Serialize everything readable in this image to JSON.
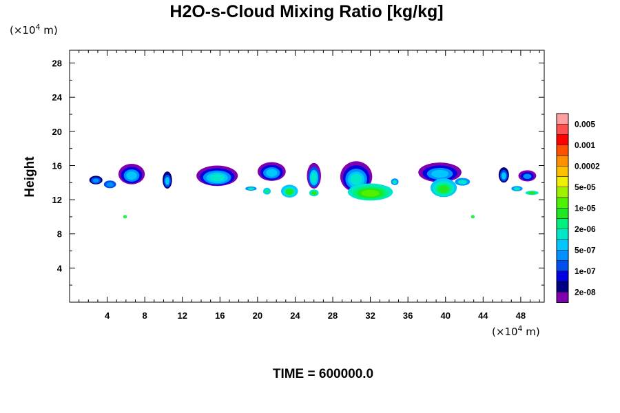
{
  "chart_data": {
    "type": "heatmap",
    "title": "H2O-s-Cloud Mixing Ratio [kg/kg]",
    "xlabel": "",
    "ylabel": "Height",
    "x_unit_prefix": "(×10",
    "x_unit_exp": "4",
    "x_unit_suffix": " m)",
    "y_unit_prefix": "(×10",
    "y_unit_exp": "4",
    "y_unit_suffix": " m)",
    "xlim": [
      0,
      50.5
    ],
    "ylim": [
      0,
      29.5
    ],
    "x_ticks": [
      4,
      8,
      12,
      16,
      20,
      24,
      28,
      32,
      36,
      40,
      44,
      48
    ],
    "y_ticks": [
      4,
      8,
      12,
      16,
      20,
      24,
      28
    ],
    "footer": "TIME = 600000.0",
    "legend": {
      "placement": "right",
      "colors": [
        "#8000b0",
        "#000080",
        "#0000e0",
        "#0050f0",
        "#0090ff",
        "#00c8ff",
        "#00e8c8",
        "#00f080",
        "#20e820",
        "#50f000",
        "#a0f000",
        "#f0f000",
        "#ffc000",
        "#ff9000",
        "#ff5000",
        "#ff0000",
        "#ff5050",
        "#ffa0a0"
      ],
      "labels": [
        "2e-08",
        "1e-07",
        "5e-07",
        "2e-06",
        "1e-05",
        "5e-05",
        "0.0002",
        "0.001",
        "0.005"
      ]
    },
    "clouds": [
      {
        "x": 2.8,
        "y": 14.3,
        "w": 1.4,
        "h": 1.0,
        "levels": [
          1,
          3,
          4
        ]
      },
      {
        "x": 4.3,
        "y": 13.8,
        "w": 1.3,
        "h": 0.9,
        "levels": [
          3,
          4
        ]
      },
      {
        "x": 6.6,
        "y": 15.0,
        "w": 2.8,
        "h": 2.4,
        "levels": [
          0,
          2,
          4,
          5
        ]
      },
      {
        "x": 10.4,
        "y": 14.3,
        "w": 1.0,
        "h": 2.0,
        "levels": [
          1,
          3,
          5
        ]
      },
      {
        "x": 15.7,
        "y": 14.8,
        "w": 4.4,
        "h": 2.4,
        "levels": [
          0,
          2,
          4,
          5,
          6
        ]
      },
      {
        "x": 19.3,
        "y": 13.3,
        "w": 1.2,
        "h": 0.5,
        "levels": [
          4,
          6
        ]
      },
      {
        "x": 21.5,
        "y": 15.3,
        "w": 3.0,
        "h": 2.2,
        "levels": [
          0,
          2,
          4,
          5
        ]
      },
      {
        "x": 21.0,
        "y": 13.0,
        "w": 0.8,
        "h": 0.8,
        "levels": [
          5,
          7
        ]
      },
      {
        "x": 23.4,
        "y": 13.0,
        "w": 1.8,
        "h": 1.5,
        "levels": [
          5,
          6,
          8
        ]
      },
      {
        "x": 26.0,
        "y": 14.8,
        "w": 1.5,
        "h": 3.0,
        "levels": [
          0,
          3,
          5,
          6
        ]
      },
      {
        "x": 26.0,
        "y": 12.8,
        "w": 1.0,
        "h": 0.8,
        "levels": [
          6,
          8
        ]
      },
      {
        "x": 30.5,
        "y": 14.7,
        "w": 3.4,
        "h": 3.6,
        "levels": [
          0,
          2,
          4,
          5,
          6
        ]
      },
      {
        "x": 32.0,
        "y": 12.9,
        "w": 4.8,
        "h": 2.0,
        "levels": [
          6,
          7,
          8,
          9
        ]
      },
      {
        "x": 34.6,
        "y": 14.1,
        "w": 0.8,
        "h": 0.8,
        "levels": [
          4,
          6
        ]
      },
      {
        "x": 39.4,
        "y": 15.2,
        "w": 4.6,
        "h": 2.3,
        "levels": [
          0,
          2,
          4,
          5
        ]
      },
      {
        "x": 39.8,
        "y": 13.4,
        "w": 2.8,
        "h": 2.2,
        "levels": [
          5,
          6,
          7,
          8
        ]
      },
      {
        "x": 41.8,
        "y": 14.1,
        "w": 1.6,
        "h": 0.9,
        "levels": [
          4,
          6
        ]
      },
      {
        "x": 46.2,
        "y": 14.9,
        "w": 1.1,
        "h": 1.8,
        "levels": [
          1,
          3,
          5
        ]
      },
      {
        "x": 48.7,
        "y": 14.8,
        "w": 1.9,
        "h": 1.3,
        "levels": [
          0,
          2,
          4
        ]
      },
      {
        "x": 47.6,
        "y": 13.3,
        "w": 1.2,
        "h": 0.6,
        "levels": [
          4,
          6
        ]
      },
      {
        "x": 49.2,
        "y": 12.8,
        "w": 1.4,
        "h": 0.5,
        "levels": [
          6,
          8
        ]
      },
      {
        "x": 5.9,
        "y": 10.0,
        "w": 0.4,
        "h": 0.4,
        "levels": [
          7,
          9
        ]
      },
      {
        "x": 42.9,
        "y": 10.0,
        "w": 0.4,
        "h": 0.4,
        "levels": [
          7,
          9
        ]
      }
    ]
  }
}
